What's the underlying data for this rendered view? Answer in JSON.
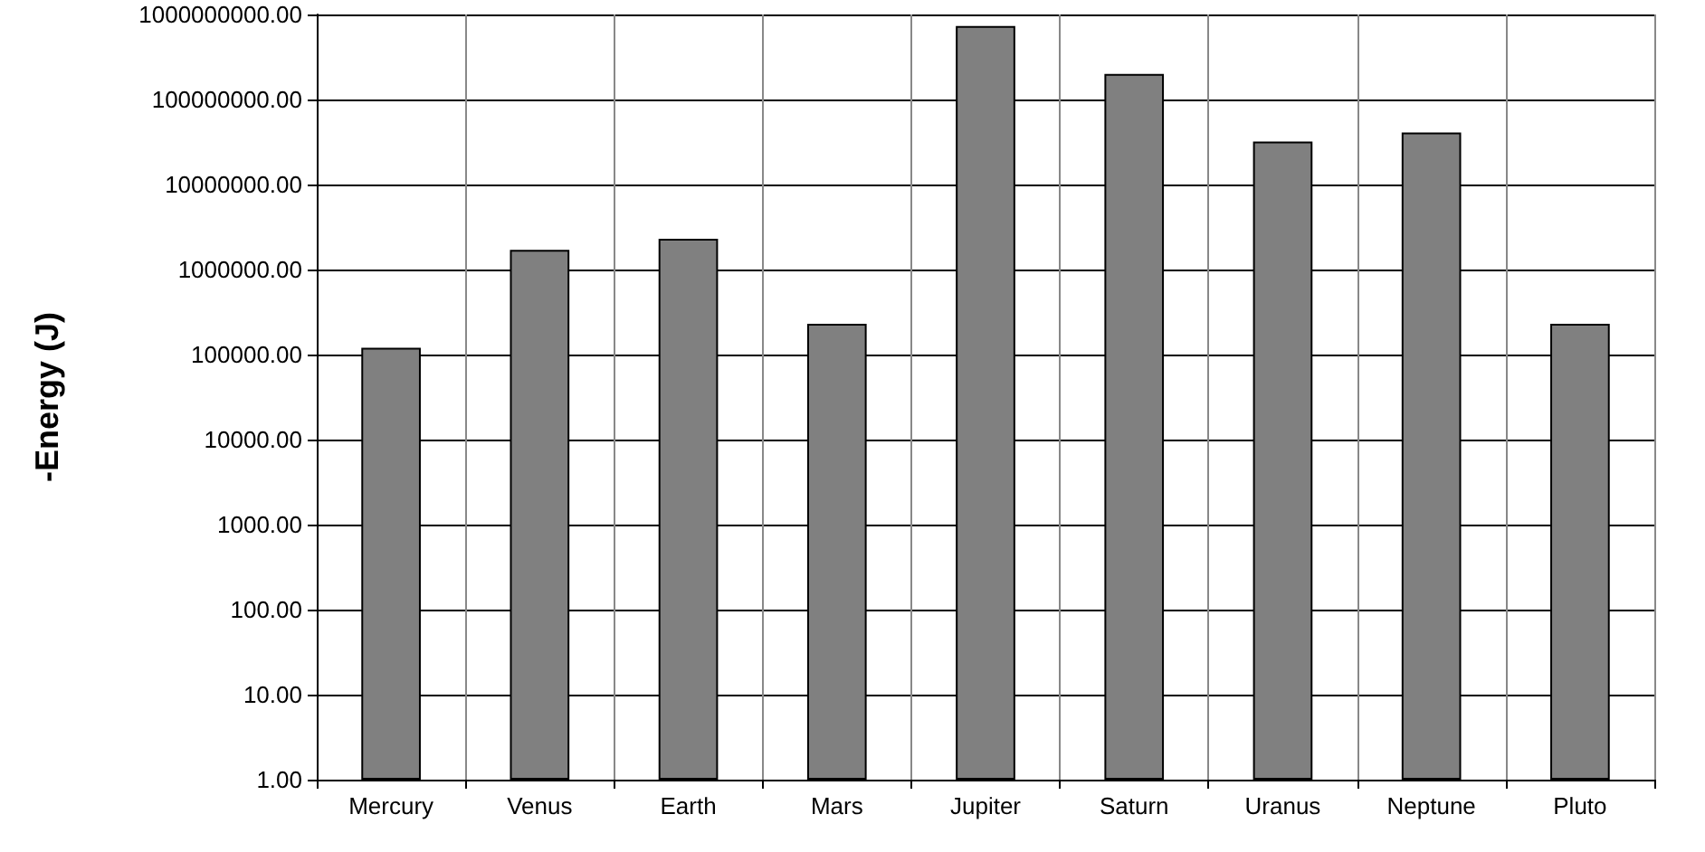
{
  "chart_data": {
    "type": "bar",
    "ylabel": "-Energy (J)",
    "categories": [
      "Mercury",
      "Venus",
      "Earth",
      "Mars",
      "Jupiter",
      "Saturn",
      "Uranus",
      "Neptune",
      "Pluto"
    ],
    "values": [
      120000,
      1700000,
      2300000,
      230000,
      730000000,
      200000000,
      32000000,
      41000000,
      230000
    ],
    "color": "#808080",
    "log": "y",
    "ylim": [
      1,
      1000000000
    ],
    "yticks": [
      {
        "value": 1,
        "label": "1.00"
      },
      {
        "value": 10,
        "label": "10.00"
      },
      {
        "value": 100,
        "label": "100.00"
      },
      {
        "value": 1000,
        "label": "1000.00"
      },
      {
        "value": 10000,
        "label": "10000.00"
      },
      {
        "value": 100000,
        "label": "100000.00"
      },
      {
        "value": 1000000,
        "label": "1000000.00"
      },
      {
        "value": 10000000,
        "label": "10000000.00"
      },
      {
        "value": 100000000,
        "label": "100000000.00"
      },
      {
        "value": 1000000000,
        "label": "1000000000.00"
      }
    ],
    "grid": true
  }
}
